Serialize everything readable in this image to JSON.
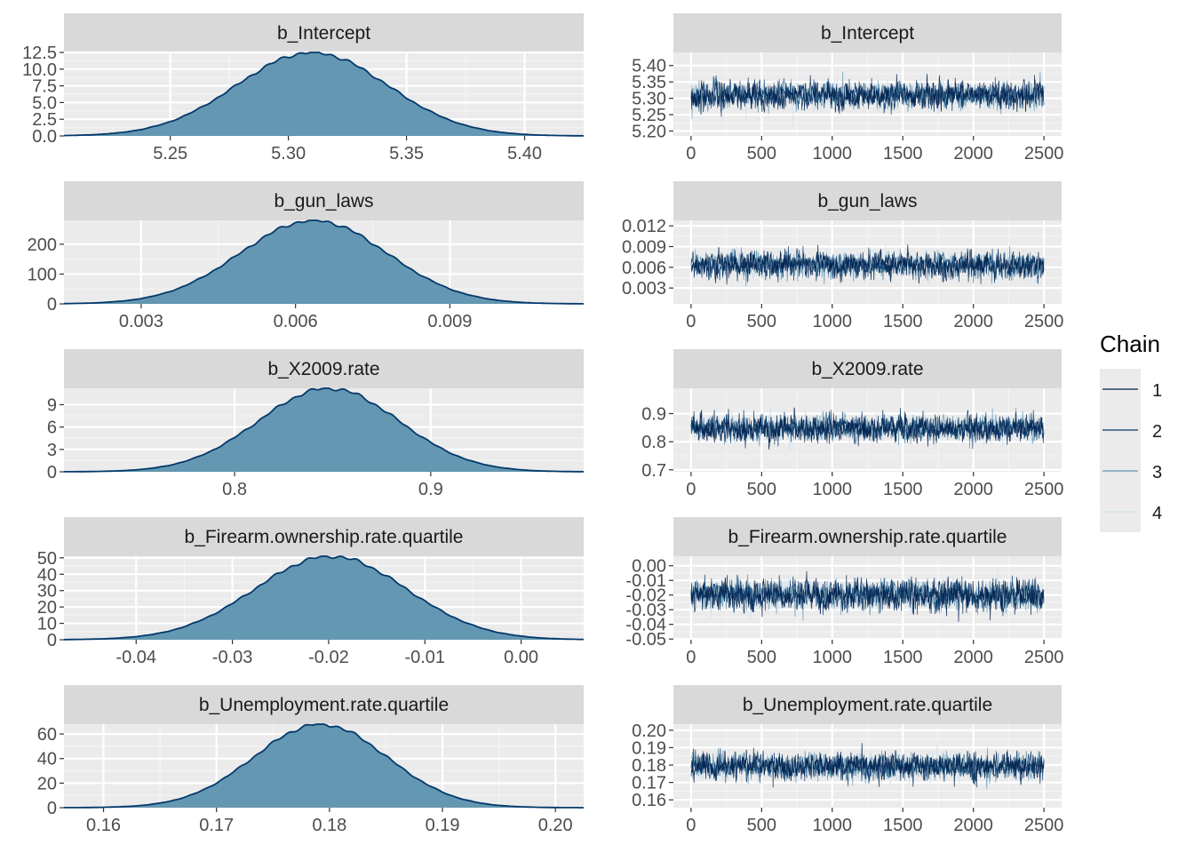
{
  "chart_data": {
    "type": "mcmc-diagnostics",
    "colors": {
      "density_fill": "#6497b1",
      "density_line": "#03396c",
      "chain_1": "#011f4b",
      "chain_2": "#03396c",
      "chain_3": "#6497b1",
      "chain_4": "#d1e1ec",
      "panel_bg": "#ebebeb",
      "strip_bg": "#d9d9d9"
    },
    "legend": {
      "title": "Chain",
      "position": "right",
      "items": [
        {
          "label": "1",
          "color": "#011f4b"
        },
        {
          "label": "2",
          "color": "#03396c"
        },
        {
          "label": "3",
          "color": "#6497b1"
        },
        {
          "label": "4",
          "color": "#d1e1ec"
        }
      ]
    },
    "density_panels": [
      {
        "title": "b_Intercept",
        "mean": 5.31,
        "sd": 0.032,
        "xlim": [
          5.205,
          5.425
        ],
        "ylim": [
          0,
          12.5
        ],
        "xticks": [
          5.25,
          5.3,
          5.35,
          5.4
        ],
        "xtick_labels": [
          "5.25",
          "5.30",
          "5.35",
          "5.40"
        ],
        "yticks": [
          0,
          2.5,
          5,
          7.5,
          10,
          12.5
        ],
        "ytick_labels": [
          "0.0",
          "2.5",
          "5.0",
          "7.5",
          "10.0",
          "12.5"
        ]
      },
      {
        "title": "b_gun_laws",
        "mean": 0.00635,
        "sd": 0.00143,
        "xlim": [
          0.0015,
          0.0116
        ],
        "ylim": [
          0,
          280
        ],
        "xticks": [
          0.003,
          0.006,
          0.009
        ],
        "xtick_labels": [
          "0.003",
          "0.006",
          "0.009"
        ],
        "yticks": [
          0,
          100,
          200
        ],
        "ytick_labels": [
          "0",
          "100",
          "200"
        ]
      },
      {
        "title": "b_X2009.rate",
        "mean": 0.848,
        "sd": 0.036,
        "xlim": [
          0.713,
          0.978
        ],
        "ylim": [
          0,
          11.2
        ],
        "xticks": [
          0.8,
          0.9
        ],
        "xtick_labels": [
          "0.8",
          "0.9"
        ],
        "yticks": [
          0,
          3,
          6,
          9
        ],
        "ytick_labels": [
          "0",
          "3",
          "6",
          "9"
        ]
      },
      {
        "title": "b_Firearm.ownership.rate.quartile",
        "mean": -0.0198,
        "sd": 0.0079,
        "xlim": [
          -0.0475,
          0.0065
        ],
        "ylim": [
          0,
          51
        ],
        "xticks": [
          -0.04,
          -0.03,
          -0.02,
          -0.01,
          0.0
        ],
        "xtick_labels": [
          "-0.04",
          "-0.03",
          "-0.02",
          "-0.01",
          "0.00"
        ],
        "yticks": [
          0,
          10,
          20,
          30,
          40,
          50
        ],
        "ytick_labels": [
          "0",
          "10",
          "20",
          "30",
          "40",
          "50"
        ]
      },
      {
        "title": "b_Unemployment.rate.quartile",
        "mean": 0.1792,
        "sd": 0.0059,
        "xlim": [
          0.1565,
          0.2025
        ],
        "ylim": [
          0,
          68
        ],
        "xticks": [
          0.16,
          0.17,
          0.18,
          0.19,
          0.2
        ],
        "xtick_labels": [
          "0.16",
          "0.17",
          "0.18",
          "0.19",
          "0.20"
        ],
        "yticks": [
          0,
          20,
          40,
          60
        ],
        "ytick_labels": [
          "0",
          "20",
          "40",
          "60"
        ]
      }
    ],
    "trace_panels": [
      {
        "title": "b_Intercept",
        "mean": 5.31,
        "sd": 0.032,
        "xlim": [
          -125,
          2625
        ],
        "ylim": [
          5.185,
          5.44
        ],
        "xticks": [
          0,
          500,
          1000,
          1500,
          2000,
          2500
        ],
        "xtick_labels": [
          "0",
          "500",
          "1000",
          "1500",
          "2000",
          "2500"
        ],
        "yticks": [
          5.2,
          5.25,
          5.3,
          5.35,
          5.4
        ],
        "ytick_labels": [
          "5.20",
          "5.25",
          "5.30",
          "5.35",
          "5.40"
        ]
      },
      {
        "title": "b_gun_laws",
        "mean": 0.00635,
        "sd": 0.00143,
        "xlim": [
          -125,
          2625
        ],
        "ylim": [
          0.0007,
          0.0128
        ],
        "xticks": [
          0,
          500,
          1000,
          1500,
          2000,
          2500
        ],
        "xtick_labels": [
          "0",
          "500",
          "1000",
          "1500",
          "2000",
          "2500"
        ],
        "yticks": [
          0.003,
          0.006,
          0.009,
          0.012
        ],
        "ytick_labels": [
          "0.003",
          "0.006",
          "0.009",
          "0.012"
        ]
      },
      {
        "title": "b_X2009.rate",
        "mean": 0.848,
        "sd": 0.036,
        "xlim": [
          -125,
          2625
        ],
        "ylim": [
          0.693,
          0.99
        ],
        "xticks": [
          0,
          500,
          1000,
          1500,
          2000,
          2500
        ],
        "xtick_labels": [
          "0",
          "500",
          "1000",
          "1500",
          "2000",
          "2500"
        ],
        "yticks": [
          0.7,
          0.8,
          0.9
        ],
        "ytick_labels": [
          "0.7",
          "0.8",
          "0.9"
        ]
      },
      {
        "title": "b_Firearm.ownership.rate.quartile",
        "mean": -0.0198,
        "sd": 0.0079,
        "xlim": [
          -125,
          2625
        ],
        "ylim": [
          -0.0505,
          0.0065
        ],
        "xticks": [
          0,
          500,
          1000,
          1500,
          2000,
          2500
        ],
        "xtick_labels": [
          "0",
          "500",
          "1000",
          "1500",
          "2000",
          "2500"
        ],
        "yticks": [
          -0.05,
          -0.04,
          -0.03,
          -0.02,
          -0.01,
          0.0
        ],
        "ytick_labels": [
          "-0.05",
          "-0.04",
          "-0.03",
          "-0.02",
          "-0.01",
          "0.00"
        ]
      },
      {
        "title": "b_Unemployment.rate.quartile",
        "mean": 0.1792,
        "sd": 0.0059,
        "xlim": [
          -125,
          2625
        ],
        "ylim": [
          0.1555,
          0.2035
        ],
        "xticks": [
          0,
          500,
          1000,
          1500,
          2000,
          2500
        ],
        "xtick_labels": [
          "0",
          "500",
          "1000",
          "1500",
          "2000",
          "2500"
        ],
        "yticks": [
          0.16,
          0.17,
          0.18,
          0.19,
          0.2
        ],
        "ytick_labels": [
          "0.16",
          "0.17",
          "0.18",
          "0.19",
          "0.20"
        ]
      }
    ],
    "iterations": 2500,
    "chains": 4,
    "grid": true
  }
}
